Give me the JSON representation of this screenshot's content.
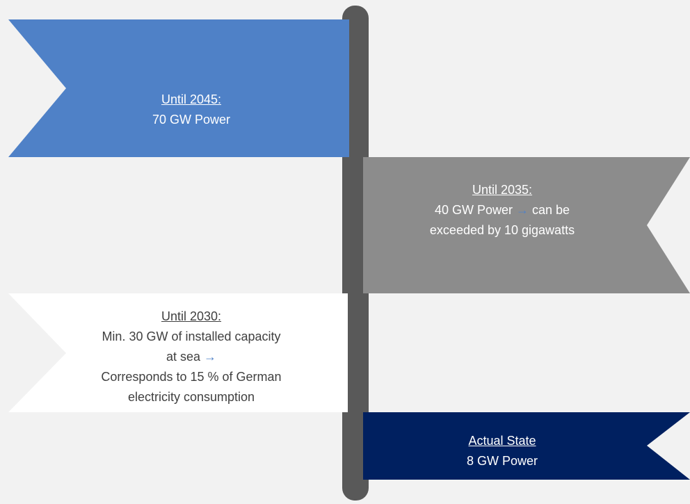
{
  "flags": [
    {
      "title": "Until 2045:",
      "lines": [
        [
          {
            "text": "70 GW Power"
          }
        ]
      ]
    },
    {
      "title": "Until 2035:",
      "lines": [
        [
          {
            "text": "40 GW Power"
          },
          {
            "text": "→",
            "color": "#4f81c7"
          },
          {
            "text": "can be"
          }
        ],
        [
          {
            "text": "exceeded by 10 gigawatts"
          }
        ]
      ]
    },
    {
      "title": "Until 2030:",
      "lines": [
        [
          {
            "text": "Min. 30 GW of installed capacity"
          }
        ],
        [
          {
            "text": "at sea"
          },
          {
            "text": "→",
            "color": "#4f81c7"
          }
        ],
        [
          {
            "text": "Corresponds to 15 % of German"
          }
        ],
        [
          {
            "text": "electricity consumption"
          }
        ]
      ]
    },
    {
      "title": "Actual State",
      "lines": [
        [
          {
            "text": "8 GW Power"
          }
        ]
      ]
    }
  ]
}
